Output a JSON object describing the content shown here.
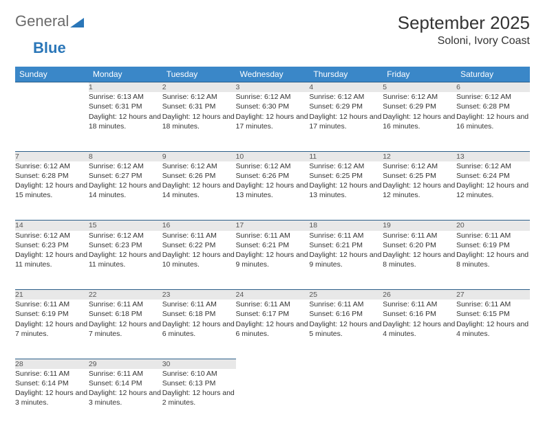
{
  "logo": {
    "part1": "General",
    "part2": "Blue"
  },
  "title": "September 2025",
  "location": "Soloni, Ivory Coast",
  "colors": {
    "header_bg": "#3a87c8",
    "header_text": "#ffffff",
    "daynum_bg": "#e8e8e8",
    "rule": "#2a5d88",
    "logo_blue": "#2a76b8",
    "text": "#333333"
  },
  "day_headers": [
    "Sunday",
    "Monday",
    "Tuesday",
    "Wednesday",
    "Thursday",
    "Friday",
    "Saturday"
  ],
  "weeks": [
    [
      null,
      {
        "n": "1",
        "sunrise": "6:13 AM",
        "sunset": "6:31 PM",
        "daylight": "12 hours and 18 minutes."
      },
      {
        "n": "2",
        "sunrise": "6:12 AM",
        "sunset": "6:31 PM",
        "daylight": "12 hours and 18 minutes."
      },
      {
        "n": "3",
        "sunrise": "6:12 AM",
        "sunset": "6:30 PM",
        "daylight": "12 hours and 17 minutes."
      },
      {
        "n": "4",
        "sunrise": "6:12 AM",
        "sunset": "6:29 PM",
        "daylight": "12 hours and 17 minutes."
      },
      {
        "n": "5",
        "sunrise": "6:12 AM",
        "sunset": "6:29 PM",
        "daylight": "12 hours and 16 minutes."
      },
      {
        "n": "6",
        "sunrise": "6:12 AM",
        "sunset": "6:28 PM",
        "daylight": "12 hours and 16 minutes."
      }
    ],
    [
      {
        "n": "7",
        "sunrise": "6:12 AM",
        "sunset": "6:28 PM",
        "daylight": "12 hours and 15 minutes."
      },
      {
        "n": "8",
        "sunrise": "6:12 AM",
        "sunset": "6:27 PM",
        "daylight": "12 hours and 14 minutes."
      },
      {
        "n": "9",
        "sunrise": "6:12 AM",
        "sunset": "6:26 PM",
        "daylight": "12 hours and 14 minutes."
      },
      {
        "n": "10",
        "sunrise": "6:12 AM",
        "sunset": "6:26 PM",
        "daylight": "12 hours and 13 minutes."
      },
      {
        "n": "11",
        "sunrise": "6:12 AM",
        "sunset": "6:25 PM",
        "daylight": "12 hours and 13 minutes."
      },
      {
        "n": "12",
        "sunrise": "6:12 AM",
        "sunset": "6:25 PM",
        "daylight": "12 hours and 12 minutes."
      },
      {
        "n": "13",
        "sunrise": "6:12 AM",
        "sunset": "6:24 PM",
        "daylight": "12 hours and 12 minutes."
      }
    ],
    [
      {
        "n": "14",
        "sunrise": "6:12 AM",
        "sunset": "6:23 PM",
        "daylight": "12 hours and 11 minutes."
      },
      {
        "n": "15",
        "sunrise": "6:12 AM",
        "sunset": "6:23 PM",
        "daylight": "12 hours and 11 minutes."
      },
      {
        "n": "16",
        "sunrise": "6:11 AM",
        "sunset": "6:22 PM",
        "daylight": "12 hours and 10 minutes."
      },
      {
        "n": "17",
        "sunrise": "6:11 AM",
        "sunset": "6:21 PM",
        "daylight": "12 hours and 9 minutes."
      },
      {
        "n": "18",
        "sunrise": "6:11 AM",
        "sunset": "6:21 PM",
        "daylight": "12 hours and 9 minutes."
      },
      {
        "n": "19",
        "sunrise": "6:11 AM",
        "sunset": "6:20 PM",
        "daylight": "12 hours and 8 minutes."
      },
      {
        "n": "20",
        "sunrise": "6:11 AM",
        "sunset": "6:19 PM",
        "daylight": "12 hours and 8 minutes."
      }
    ],
    [
      {
        "n": "21",
        "sunrise": "6:11 AM",
        "sunset": "6:19 PM",
        "daylight": "12 hours and 7 minutes."
      },
      {
        "n": "22",
        "sunrise": "6:11 AM",
        "sunset": "6:18 PM",
        "daylight": "12 hours and 7 minutes."
      },
      {
        "n": "23",
        "sunrise": "6:11 AM",
        "sunset": "6:18 PM",
        "daylight": "12 hours and 6 minutes."
      },
      {
        "n": "24",
        "sunrise": "6:11 AM",
        "sunset": "6:17 PM",
        "daylight": "12 hours and 6 minutes."
      },
      {
        "n": "25",
        "sunrise": "6:11 AM",
        "sunset": "6:16 PM",
        "daylight": "12 hours and 5 minutes."
      },
      {
        "n": "26",
        "sunrise": "6:11 AM",
        "sunset": "6:16 PM",
        "daylight": "12 hours and 4 minutes."
      },
      {
        "n": "27",
        "sunrise": "6:11 AM",
        "sunset": "6:15 PM",
        "daylight": "12 hours and 4 minutes."
      }
    ],
    [
      {
        "n": "28",
        "sunrise": "6:11 AM",
        "sunset": "6:14 PM",
        "daylight": "12 hours and 3 minutes."
      },
      {
        "n": "29",
        "sunrise": "6:11 AM",
        "sunset": "6:14 PM",
        "daylight": "12 hours and 3 minutes."
      },
      {
        "n": "30",
        "sunrise": "6:10 AM",
        "sunset": "6:13 PM",
        "daylight": "12 hours and 2 minutes."
      },
      null,
      null,
      null,
      null
    ]
  ],
  "labels": {
    "sunrise": "Sunrise: ",
    "sunset": "Sunset: ",
    "daylight": "Daylight: "
  }
}
